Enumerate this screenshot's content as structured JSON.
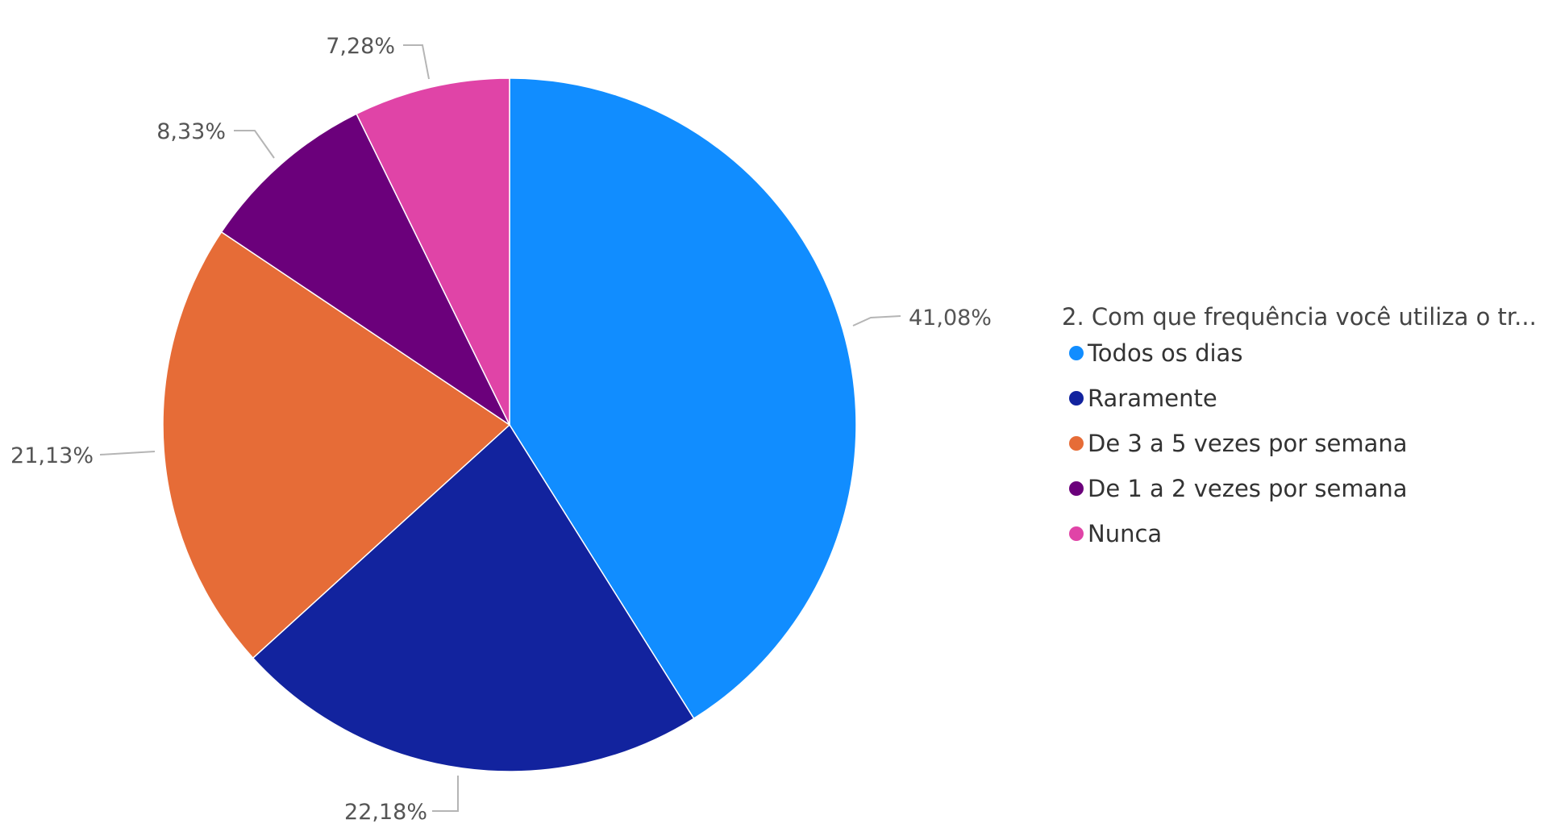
{
  "chart_data": {
    "type": "pie",
    "legend_title": "2. Com que frequência você utiliza o tr...",
    "legend_position": "right",
    "categories": [
      "Todos os dias",
      "Raramente",
      "De 3 a 5 vezes por semana",
      "De 1 a 2 vezes por semana",
      "Nunca"
    ],
    "values": [
      41.08,
      22.18,
      21.13,
      8.33,
      7.28
    ],
    "labels": [
      "41,08%",
      "22,18%",
      "21,13%",
      "8,33%",
      "7,28%"
    ],
    "colors": [
      "#118DFF",
      "#12239E",
      "#E66C37",
      "#6B007B",
      "#E044A7"
    ]
  }
}
